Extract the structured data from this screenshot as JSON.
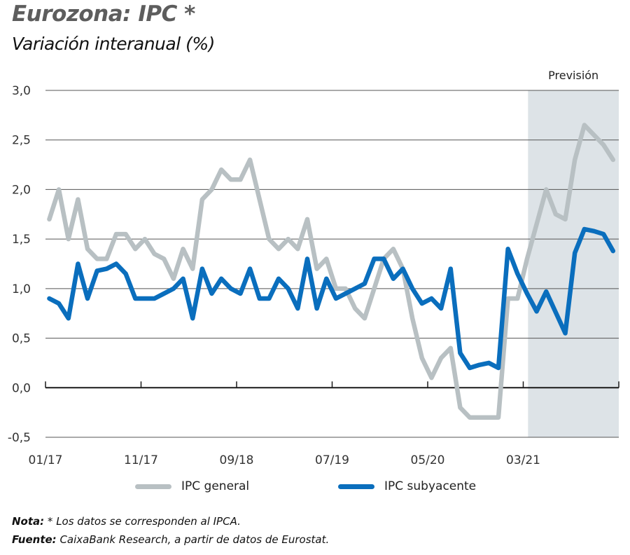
{
  "header": {
    "title": "Eurozona: IPC *",
    "subtitle": "Variación interanual (%)"
  },
  "chart_data": {
    "type": "line",
    "title": "Eurozona: IPC *",
    "subtitle": "Variación interanual (%)",
    "xlabel": "",
    "ylabel": "",
    "ylim": [
      -0.5,
      3.0
    ],
    "yticks": [
      -0.5,
      0.0,
      0.5,
      1.0,
      1.5,
      2.0,
      2.5,
      3.0
    ],
    "ytick_labels": [
      "-0,5",
      "0,0",
      "0,5",
      "1,0",
      "1,5",
      "2,0",
      "2,5",
      "3,0"
    ],
    "xtick_labels": [
      "01/17",
      "11/17",
      "09/18",
      "07/19",
      "05/20",
      "03/21"
    ],
    "xtick_positions": [
      0,
      10,
      20,
      30,
      40,
      50
    ],
    "x_axis_end": 60,
    "grid": true,
    "forecast": {
      "label": "Previsión",
      "start_index": 50.5,
      "end_index": 60,
      "color": "#dde3e7"
    },
    "x": [
      "01/17",
      "02/17",
      "03/17",
      "04/17",
      "05/17",
      "06/17",
      "07/17",
      "08/17",
      "09/17",
      "10/17",
      "11/17",
      "12/17",
      "01/18",
      "02/18",
      "03/18",
      "04/18",
      "05/18",
      "06/18",
      "07/18",
      "08/18",
      "09/18",
      "10/18",
      "11/18",
      "12/18",
      "01/19",
      "02/19",
      "03/19",
      "04/19",
      "05/19",
      "06/19",
      "07/19",
      "08/19",
      "09/19",
      "10/19",
      "11/19",
      "12/19",
      "01/20",
      "02/20",
      "03/20",
      "04/20",
      "05/20",
      "06/20",
      "07/20",
      "08/20",
      "09/20",
      "10/20",
      "11/20",
      "12/20",
      "01/21",
      "02/21",
      "03/21",
      "04/21",
      "05/21",
      "06/21",
      "07/21",
      "08/21",
      "09/21",
      "10/21",
      "11/21",
      "12/21"
    ],
    "series": [
      {
        "name": "IPC general",
        "color": "#b8c0c3",
        "values": [
          1.7,
          2.0,
          1.5,
          1.9,
          1.4,
          1.3,
          1.3,
          1.55,
          1.55,
          1.4,
          1.5,
          1.35,
          1.3,
          1.1,
          1.4,
          1.2,
          1.9,
          2.0,
          2.2,
          2.1,
          2.1,
          2.3,
          1.9,
          1.5,
          1.4,
          1.5,
          1.4,
          1.7,
          1.2,
          1.3,
          1.0,
          1.0,
          0.8,
          0.7,
          1.0,
          1.3,
          1.4,
          1.2,
          0.7,
          0.3,
          0.1,
          0.3,
          0.4,
          -0.2,
          -0.3,
          -0.3,
          -0.3,
          -0.3,
          0.9,
          0.9,
          1.3,
          1.65,
          2.0,
          1.75,
          1.7,
          2.3,
          2.65,
          2.55,
          2.45,
          2.3
        ]
      },
      {
        "name": "IPC subyacente",
        "color": "#0a6ebd",
        "values": [
          0.9,
          0.85,
          0.7,
          1.25,
          0.9,
          1.18,
          1.2,
          1.25,
          1.15,
          0.9,
          0.9,
          0.9,
          0.95,
          1.0,
          1.1,
          0.7,
          1.2,
          0.95,
          1.1,
          1.0,
          0.95,
          1.2,
          0.9,
          0.9,
          1.1,
          1.0,
          0.8,
          1.3,
          0.8,
          1.1,
          0.9,
          0.95,
          1.0,
          1.05,
          1.3,
          1.3,
          1.1,
          1.2,
          1.0,
          0.85,
          0.9,
          0.8,
          1.2,
          0.35,
          0.2,
          0.23,
          0.25,
          0.2,
          1.4,
          1.15,
          0.95,
          0.77,
          0.97,
          0.76,
          0.55,
          1.36,
          1.6,
          1.58,
          1.55,
          1.38
        ]
      }
    ],
    "legend": {
      "placement": "bottom-center",
      "entries": [
        "IPC general",
        "IPC subyacente"
      ]
    }
  },
  "legend": {
    "general_label": "IPC general",
    "core_label": "IPC subyacente",
    "general_color": "#b8c0c3",
    "core_color": "#0a6ebd"
  },
  "notes": {
    "nota_label": "Nota:",
    "nota_text": " * Los datos se corresponden al IPCA.",
    "fuente_label": "Fuente:",
    "fuente_text": " CaixaBank Research, a partir de datos de Eurostat."
  }
}
